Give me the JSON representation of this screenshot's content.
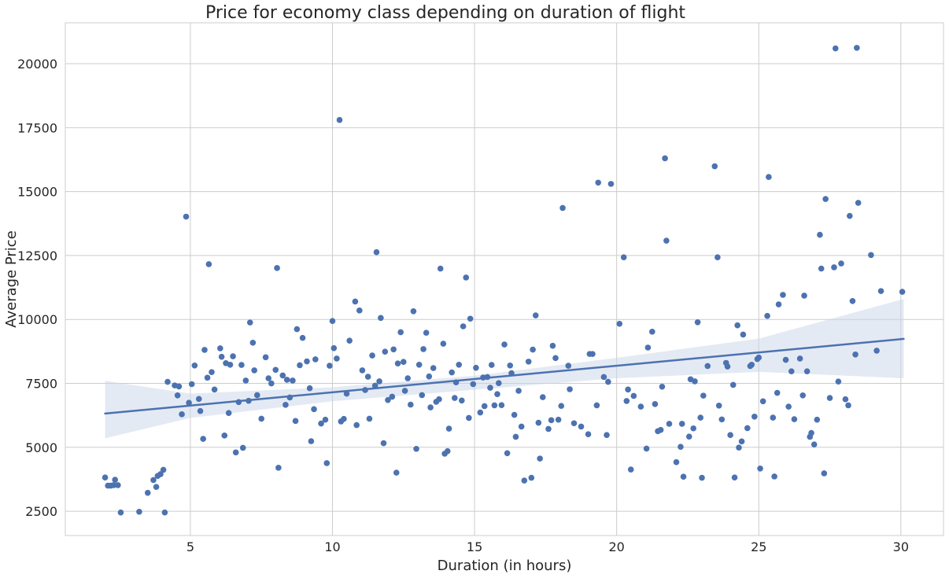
{
  "chart_data": {
    "type": "scatter",
    "title": "Price for economy class depending on duration of flight",
    "xlabel": "Duration (in hours)",
    "ylabel": "Average Price",
    "xlim": [
      0.6,
      31.5
    ],
    "ylim": [
      1550,
      21600
    ],
    "xticks": [
      5,
      10,
      15,
      20,
      25,
      30
    ],
    "yticks": [
      2500,
      5000,
      7500,
      10000,
      12500,
      15000,
      17500,
      20000
    ],
    "grid": true,
    "colors": {
      "points": "#4c72b0",
      "line": "#4c72b0",
      "band": "#c9d5ea",
      "grid": "#cccccc"
    },
    "regression": {
      "x": [
        2.0,
        30.1
      ],
      "y": [
        6320,
        9240
      ]
    },
    "confidence_band": {
      "x": [
        2.0,
        5,
        10,
        15,
        20,
        25,
        30.1
      ],
      "lower": [
        5350,
        6150,
        6800,
        7250,
        7700,
        7950,
        7700
      ],
      "upper": [
        7600,
        7100,
        7350,
        7800,
        8500,
        9250,
        10800
      ]
    },
    "points": [
      {
        "x": 2.0,
        "y": 3820
      },
      {
        "x": 2.1,
        "y": 3500
      },
      {
        "x": 2.2,
        "y": 3500
      },
      {
        "x": 2.3,
        "y": 3520
      },
      {
        "x": 2.35,
        "y": 3730
      },
      {
        "x": 2.45,
        "y": 3520
      },
      {
        "x": 2.55,
        "y": 2450
      },
      {
        "x": 3.2,
        "y": 2480
      },
      {
        "x": 3.5,
        "y": 3220
      },
      {
        "x": 3.7,
        "y": 3720
      },
      {
        "x": 3.8,
        "y": 3450
      },
      {
        "x": 3.85,
        "y": 3880
      },
      {
        "x": 3.95,
        "y": 3950
      },
      {
        "x": 4.05,
        "y": 4120
      },
      {
        "x": 4.1,
        "y": 2450
      },
      {
        "x": 4.2,
        "y": 7560
      },
      {
        "x": 4.45,
        "y": 7420
      },
      {
        "x": 4.55,
        "y": 7030
      },
      {
        "x": 4.6,
        "y": 7380
      },
      {
        "x": 4.7,
        "y": 6290
      },
      {
        "x": 4.85,
        "y": 14020
      },
      {
        "x": 4.95,
        "y": 6740
      },
      {
        "x": 5.05,
        "y": 7470
      },
      {
        "x": 5.15,
        "y": 8200
      },
      {
        "x": 5.3,
        "y": 6890
      },
      {
        "x": 5.35,
        "y": 6420
      },
      {
        "x": 5.45,
        "y": 5330
      },
      {
        "x": 5.5,
        "y": 8810
      },
      {
        "x": 5.6,
        "y": 7720
      },
      {
        "x": 5.65,
        "y": 12160
      },
      {
        "x": 5.75,
        "y": 7940
      },
      {
        "x": 5.85,
        "y": 7260
      },
      {
        "x": 6.05,
        "y": 8870
      },
      {
        "x": 6.1,
        "y": 8540
      },
      {
        "x": 6.2,
        "y": 5460
      },
      {
        "x": 6.25,
        "y": 8290
      },
      {
        "x": 6.35,
        "y": 6340
      },
      {
        "x": 6.4,
        "y": 8230
      },
      {
        "x": 6.5,
        "y": 8560
      },
      {
        "x": 6.6,
        "y": 4800
      },
      {
        "x": 6.7,
        "y": 6770
      },
      {
        "x": 6.8,
        "y": 8220
      },
      {
        "x": 6.85,
        "y": 4980
      },
      {
        "x": 6.95,
        "y": 7610
      },
      {
        "x": 7.05,
        "y": 6820
      },
      {
        "x": 7.1,
        "y": 9880
      },
      {
        "x": 7.2,
        "y": 9090
      },
      {
        "x": 7.25,
        "y": 8010
      },
      {
        "x": 7.35,
        "y": 7040
      },
      {
        "x": 7.5,
        "y": 6120
      },
      {
        "x": 7.65,
        "y": 8520
      },
      {
        "x": 7.75,
        "y": 7700
      },
      {
        "x": 7.85,
        "y": 7500
      },
      {
        "x": 8.0,
        "y": 8030
      },
      {
        "x": 8.05,
        "y": 12010
      },
      {
        "x": 8.1,
        "y": 4200
      },
      {
        "x": 8.25,
        "y": 7810
      },
      {
        "x": 8.35,
        "y": 6660
      },
      {
        "x": 8.4,
        "y": 7640
      },
      {
        "x": 8.5,
        "y": 6950
      },
      {
        "x": 8.6,
        "y": 7610
      },
      {
        "x": 8.7,
        "y": 6030
      },
      {
        "x": 8.75,
        "y": 9620
      },
      {
        "x": 8.85,
        "y": 8210
      },
      {
        "x": 8.95,
        "y": 9280
      },
      {
        "x": 9.1,
        "y": 8360
      },
      {
        "x": 9.2,
        "y": 7310
      },
      {
        "x": 9.25,
        "y": 5240
      },
      {
        "x": 9.35,
        "y": 6490
      },
      {
        "x": 9.4,
        "y": 8440
      },
      {
        "x": 9.6,
        "y": 5930
      },
      {
        "x": 9.75,
        "y": 6080
      },
      {
        "x": 9.8,
        "y": 4380
      },
      {
        "x": 9.9,
        "y": 8190
      },
      {
        "x": 10.0,
        "y": 9940
      },
      {
        "x": 10.05,
        "y": 8880
      },
      {
        "x": 10.15,
        "y": 8470
      },
      {
        "x": 10.25,
        "y": 17800
      },
      {
        "x": 10.3,
        "y": 6010
      },
      {
        "x": 10.4,
        "y": 6110
      },
      {
        "x": 10.5,
        "y": 7100
      },
      {
        "x": 10.6,
        "y": 9170
      },
      {
        "x": 10.8,
        "y": 10700
      },
      {
        "x": 10.85,
        "y": 5870
      },
      {
        "x": 10.95,
        "y": 10350
      },
      {
        "x": 11.05,
        "y": 8010
      },
      {
        "x": 11.15,
        "y": 7240
      },
      {
        "x": 11.25,
        "y": 7760
      },
      {
        "x": 11.3,
        "y": 6120
      },
      {
        "x": 11.4,
        "y": 8590
      },
      {
        "x": 11.5,
        "y": 7410
      },
      {
        "x": 11.55,
        "y": 12630
      },
      {
        "x": 11.65,
        "y": 7580
      },
      {
        "x": 11.7,
        "y": 10060
      },
      {
        "x": 11.8,
        "y": 5160
      },
      {
        "x": 11.85,
        "y": 8740
      },
      {
        "x": 11.95,
        "y": 6850
      },
      {
        "x": 12.1,
        "y": 6980
      },
      {
        "x": 12.15,
        "y": 8830
      },
      {
        "x": 12.25,
        "y": 4010
      },
      {
        "x": 12.3,
        "y": 8280
      },
      {
        "x": 12.4,
        "y": 9500
      },
      {
        "x": 12.5,
        "y": 8340
      },
      {
        "x": 12.55,
        "y": 7210
      },
      {
        "x": 12.65,
        "y": 7700
      },
      {
        "x": 12.75,
        "y": 6670
      },
      {
        "x": 12.85,
        "y": 10320
      },
      {
        "x": 12.95,
        "y": 4940
      },
      {
        "x": 13.05,
        "y": 8230
      },
      {
        "x": 13.15,
        "y": 7040
      },
      {
        "x": 13.2,
        "y": 8840
      },
      {
        "x": 13.3,
        "y": 9480
      },
      {
        "x": 13.4,
        "y": 7770
      },
      {
        "x": 13.45,
        "y": 6560
      },
      {
        "x": 13.55,
        "y": 8100
      },
      {
        "x": 13.65,
        "y": 6780
      },
      {
        "x": 13.75,
        "y": 6880
      },
      {
        "x": 13.8,
        "y": 11990
      },
      {
        "x": 13.9,
        "y": 9050
      },
      {
        "x": 13.95,
        "y": 4750
      },
      {
        "x": 14.05,
        "y": 4850
      },
      {
        "x": 14.1,
        "y": 5730
      },
      {
        "x": 14.2,
        "y": 7930
      },
      {
        "x": 14.3,
        "y": 6930
      },
      {
        "x": 14.35,
        "y": 7540
      },
      {
        "x": 14.45,
        "y": 8230
      },
      {
        "x": 14.55,
        "y": 6830
      },
      {
        "x": 14.6,
        "y": 9730
      },
      {
        "x": 14.7,
        "y": 11640
      },
      {
        "x": 14.8,
        "y": 6150
      },
      {
        "x": 14.85,
        "y": 10030
      },
      {
        "x": 14.95,
        "y": 7470
      },
      {
        "x": 15.05,
        "y": 8110
      },
      {
        "x": 15.2,
        "y": 6360
      },
      {
        "x": 15.3,
        "y": 7730
      },
      {
        "x": 15.35,
        "y": 6610
      },
      {
        "x": 15.45,
        "y": 7750
      },
      {
        "x": 15.55,
        "y": 7330
      },
      {
        "x": 15.6,
        "y": 8220
      },
      {
        "x": 15.7,
        "y": 6640
      },
      {
        "x": 15.8,
        "y": 7080
      },
      {
        "x": 15.85,
        "y": 7510
      },
      {
        "x": 15.95,
        "y": 6650
      },
      {
        "x": 16.05,
        "y": 9020
      },
      {
        "x": 16.15,
        "y": 4770
      },
      {
        "x": 16.25,
        "y": 8200
      },
      {
        "x": 16.3,
        "y": 7900
      },
      {
        "x": 16.4,
        "y": 6270
      },
      {
        "x": 16.45,
        "y": 5410
      },
      {
        "x": 16.55,
        "y": 7210
      },
      {
        "x": 16.65,
        "y": 5810
      },
      {
        "x": 16.75,
        "y": 3700
      },
      {
        "x": 16.9,
        "y": 8350
      },
      {
        "x": 17.0,
        "y": 3810
      },
      {
        "x": 17.05,
        "y": 8820
      },
      {
        "x": 17.15,
        "y": 10160
      },
      {
        "x": 17.25,
        "y": 5960
      },
      {
        "x": 17.3,
        "y": 4560
      },
      {
        "x": 17.4,
        "y": 6960
      },
      {
        "x": 17.6,
        "y": 5720
      },
      {
        "x": 17.7,
        "y": 6060
      },
      {
        "x": 17.75,
        "y": 8970
      },
      {
        "x": 17.85,
        "y": 8490
      },
      {
        "x": 17.95,
        "y": 6080
      },
      {
        "x": 18.05,
        "y": 6620
      },
      {
        "x": 18.1,
        "y": 14360
      },
      {
        "x": 18.3,
        "y": 8190
      },
      {
        "x": 18.35,
        "y": 7270
      },
      {
        "x": 18.5,
        "y": 5940
      },
      {
        "x": 18.75,
        "y": 5810
      },
      {
        "x": 19.0,
        "y": 5510
      },
      {
        "x": 19.05,
        "y": 8650
      },
      {
        "x": 19.15,
        "y": 8650
      },
      {
        "x": 19.3,
        "y": 6640
      },
      {
        "x": 19.35,
        "y": 15350
      },
      {
        "x": 19.55,
        "y": 7750
      },
      {
        "x": 19.65,
        "y": 5480
      },
      {
        "x": 19.7,
        "y": 7560
      },
      {
        "x": 19.8,
        "y": 15300
      },
      {
        "x": 20.1,
        "y": 9830
      },
      {
        "x": 20.25,
        "y": 12430
      },
      {
        "x": 20.35,
        "y": 6810
      },
      {
        "x": 20.4,
        "y": 7260
      },
      {
        "x": 20.5,
        "y": 4130
      },
      {
        "x": 20.6,
        "y": 7010
      },
      {
        "x": 20.85,
        "y": 6590
      },
      {
        "x": 21.05,
        "y": 4950
      },
      {
        "x": 21.1,
        "y": 8900
      },
      {
        "x": 21.25,
        "y": 9520
      },
      {
        "x": 21.35,
        "y": 6690
      },
      {
        "x": 21.45,
        "y": 5630
      },
      {
        "x": 21.55,
        "y": 5680
      },
      {
        "x": 21.6,
        "y": 7370
      },
      {
        "x": 21.7,
        "y": 16300
      },
      {
        "x": 21.75,
        "y": 13080
      },
      {
        "x": 21.85,
        "y": 5920
      },
      {
        "x": 22.1,
        "y": 4420
      },
      {
        "x": 22.25,
        "y": 5020
      },
      {
        "x": 22.3,
        "y": 5920
      },
      {
        "x": 22.35,
        "y": 3850
      },
      {
        "x": 22.55,
        "y": 5420
      },
      {
        "x": 22.6,
        "y": 7660
      },
      {
        "x": 22.7,
        "y": 5740
      },
      {
        "x": 22.75,
        "y": 7580
      },
      {
        "x": 22.85,
        "y": 9890
      },
      {
        "x": 22.95,
        "y": 6160
      },
      {
        "x": 23.0,
        "y": 3810
      },
      {
        "x": 23.05,
        "y": 7020
      },
      {
        "x": 23.2,
        "y": 8180
      },
      {
        "x": 23.45,
        "y": 15990
      },
      {
        "x": 23.55,
        "y": 12430
      },
      {
        "x": 23.6,
        "y": 6630
      },
      {
        "x": 23.7,
        "y": 6090
      },
      {
        "x": 23.85,
        "y": 8300
      },
      {
        "x": 23.9,
        "y": 8160
      },
      {
        "x": 24.0,
        "y": 5480
      },
      {
        "x": 24.1,
        "y": 7440
      },
      {
        "x": 24.15,
        "y": 3820
      },
      {
        "x": 24.25,
        "y": 9770
      },
      {
        "x": 24.3,
        "y": 4990
      },
      {
        "x": 24.4,
        "y": 5230
      },
      {
        "x": 24.45,
        "y": 9410
      },
      {
        "x": 24.6,
        "y": 5750
      },
      {
        "x": 24.7,
        "y": 8180
      },
      {
        "x": 24.75,
        "y": 8230
      },
      {
        "x": 24.85,
        "y": 6200
      },
      {
        "x": 24.95,
        "y": 8450
      },
      {
        "x": 25.0,
        "y": 8510
      },
      {
        "x": 25.05,
        "y": 4170
      },
      {
        "x": 25.15,
        "y": 6800
      },
      {
        "x": 25.3,
        "y": 10140
      },
      {
        "x": 25.35,
        "y": 15570
      },
      {
        "x": 25.5,
        "y": 6160
      },
      {
        "x": 25.55,
        "y": 3860
      },
      {
        "x": 25.65,
        "y": 7130
      },
      {
        "x": 25.7,
        "y": 10590
      },
      {
        "x": 25.85,
        "y": 10960
      },
      {
        "x": 25.95,
        "y": 8420
      },
      {
        "x": 26.05,
        "y": 6590
      },
      {
        "x": 26.15,
        "y": 7970
      },
      {
        "x": 26.25,
        "y": 6100
      },
      {
        "x": 26.45,
        "y": 8470
      },
      {
        "x": 26.55,
        "y": 7030
      },
      {
        "x": 26.6,
        "y": 10930
      },
      {
        "x": 26.7,
        "y": 7970
      },
      {
        "x": 26.8,
        "y": 5410
      },
      {
        "x": 26.85,
        "y": 5560
      },
      {
        "x": 26.95,
        "y": 5110
      },
      {
        "x": 27.05,
        "y": 6080
      },
      {
        "x": 27.15,
        "y": 13310
      },
      {
        "x": 27.2,
        "y": 11990
      },
      {
        "x": 27.3,
        "y": 3980
      },
      {
        "x": 27.35,
        "y": 14710
      },
      {
        "x": 27.5,
        "y": 6930
      },
      {
        "x": 27.65,
        "y": 12040
      },
      {
        "x": 27.7,
        "y": 20600
      },
      {
        "x": 27.8,
        "y": 7570
      },
      {
        "x": 27.9,
        "y": 12190
      },
      {
        "x": 28.05,
        "y": 6880
      },
      {
        "x": 28.15,
        "y": 6640
      },
      {
        "x": 28.2,
        "y": 14050
      },
      {
        "x": 28.3,
        "y": 10720
      },
      {
        "x": 28.4,
        "y": 8630
      },
      {
        "x": 28.45,
        "y": 20620
      },
      {
        "x": 28.5,
        "y": 14560
      },
      {
        "x": 28.95,
        "y": 12520
      },
      {
        "x": 29.15,
        "y": 8780
      },
      {
        "x": 29.3,
        "y": 11110
      },
      {
        "x": 30.05,
        "y": 11080
      }
    ]
  }
}
